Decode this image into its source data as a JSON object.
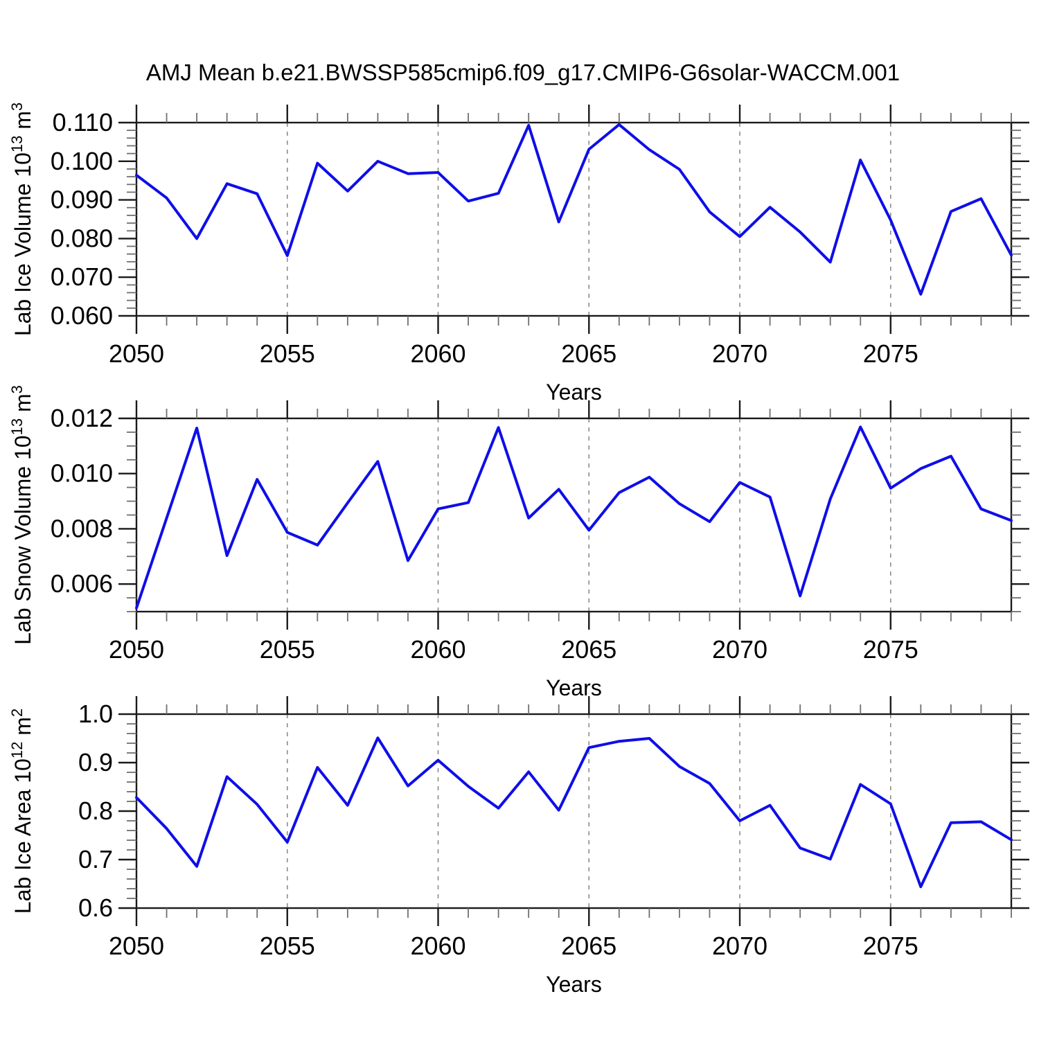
{
  "title": "AMJ Mean b.e21.BWSSP585cmip6.f09_g17.CMIP6-G6solar-WACCM.001",
  "colors": {
    "line": "#0e0ee8",
    "axis": "#1a1a1a",
    "minor_tick": "#6f6f6f",
    "grid": "#8c8c8c"
  },
  "chart_data": {
    "type": "line",
    "title": "AMJ Mean b.e21.BWSSP585cmip6.f09_g17.CMIP6-G6solar-WACCM.001",
    "x": [
      2050,
      2051,
      2052,
      2053,
      2054,
      2055,
      2056,
      2057,
      2058,
      2059,
      2060,
      2061,
      2062,
      2063,
      2064,
      2065,
      2066,
      2067,
      2068,
      2069,
      2070,
      2071,
      2072,
      2073,
      2074,
      2075,
      2076,
      2077,
      2078,
      2079
    ],
    "xlim": [
      2050,
      2079
    ],
    "xticks": [
      {
        "v": 2050,
        "label": "2050"
      },
      {
        "v": 2055,
        "label": "2055"
      },
      {
        "v": 2060,
        "label": "2060"
      },
      {
        "v": 2065,
        "label": "2065"
      },
      {
        "v": 2070,
        "label": "2070"
      },
      {
        "v": 2075,
        "label": "2075"
      }
    ],
    "xminor_step": 1,
    "grid_years": [
      2055,
      2060,
      2065,
      2070,
      2075
    ],
    "grid_on": true,
    "legend": "none",
    "panels": [
      {
        "id": "lab-ice-volume",
        "xlabel": "Years",
        "ylabel_segments": [
          {
            "text": "Lab Ice Volume 10"
          },
          {
            "text": "13",
            "sup": true
          },
          {
            "text": " m"
          },
          {
            "text": "3",
            "sup": true
          }
        ],
        "ylim": [
          0.06,
          0.11
        ],
        "yticks": [
          {
            "v": 0.11,
            "label": "0.110"
          },
          {
            "v": 0.1,
            "label": "0.100"
          },
          {
            "v": 0.09,
            "label": "0.090"
          },
          {
            "v": 0.08,
            "label": "0.080"
          },
          {
            "v": 0.07,
            "label": "0.070"
          },
          {
            "v": 0.06,
            "label": "0.060"
          }
        ],
        "yminor_step": 0.002,
        "values": [
          0.0964,
          0.0905,
          0.08,
          0.0942,
          0.0916,
          0.0756,
          0.0995,
          0.0923,
          0.1,
          0.0968,
          0.0971,
          0.0897,
          0.0917,
          0.1093,
          0.0843,
          0.1031,
          0.1095,
          0.103,
          0.0979,
          0.0869,
          0.0805,
          0.0881,
          0.0817,
          0.0739,
          0.1003,
          0.0848,
          0.0656,
          0.087,
          0.0903,
          0.0757
        ]
      },
      {
        "id": "lab-snow-volume",
        "xlabel": "Years",
        "ylabel_segments": [
          {
            "text": "Lab Snow Volume 10"
          },
          {
            "text": "13",
            "sup": true
          },
          {
            "text": " m"
          },
          {
            "text": "3",
            "sup": true
          }
        ],
        "ylim": [
          0.005,
          0.012
        ],
        "yticks": [
          {
            "v": 0.012,
            "label": "0.012"
          },
          {
            "v": 0.01,
            "label": "0.010"
          },
          {
            "v": 0.008,
            "label": "0.008"
          },
          {
            "v": 0.006,
            "label": "0.006"
          }
        ],
        "yminor_step": 0.0005,
        "values": [
          0.00513,
          0.00839,
          0.01165,
          0.00703,
          0.00979,
          0.00787,
          0.00741,
          0.00894,
          0.01044,
          0.00685,
          0.00872,
          0.00895,
          0.01167,
          0.00839,
          0.00943,
          0.00795,
          0.00931,
          0.00987,
          0.00891,
          0.00826,
          0.00968,
          0.00915,
          0.00557,
          0.00908,
          0.01169,
          0.00947,
          0.01018,
          0.01063,
          0.00872,
          0.0083
        ]
      },
      {
        "id": "lab-ice-area",
        "xlabel": "Years",
        "ylabel_segments": [
          {
            "text": "Lab Ice Area 10"
          },
          {
            "text": "12",
            "sup": true
          },
          {
            "text": " m"
          },
          {
            "text": "2",
            "sup": true
          }
        ],
        "ylim": [
          0.6,
          1.0
        ],
        "yticks": [
          {
            "v": 1.0,
            "label": "1.0"
          },
          {
            "v": 0.9,
            "label": "0.9"
          },
          {
            "v": 0.8,
            "label": "0.8"
          },
          {
            "v": 0.7,
            "label": "0.7"
          },
          {
            "v": 0.6,
            "label": "0.6"
          }
        ],
        "yminor_step": 0.02,
        "values": [
          0.828,
          0.764,
          0.686,
          0.871,
          0.814,
          0.736,
          0.89,
          0.812,
          0.951,
          0.852,
          0.905,
          0.851,
          0.806,
          0.881,
          0.802,
          0.931,
          0.944,
          0.95,
          0.892,
          0.857,
          0.78,
          0.812,
          0.724,
          0.701,
          0.855,
          0.815,
          0.644,
          0.776,
          0.778,
          0.741
        ]
      }
    ]
  }
}
